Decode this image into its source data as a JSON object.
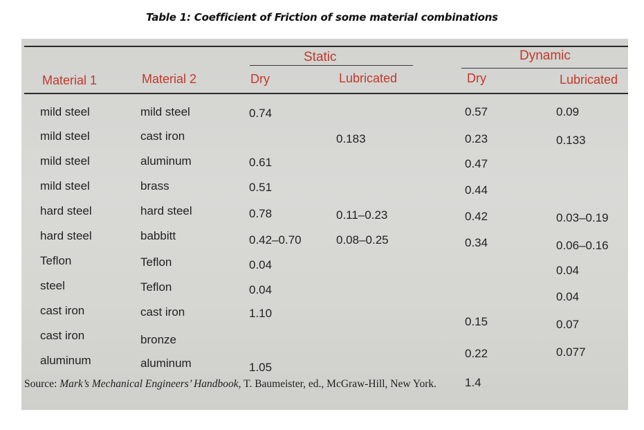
{
  "caption": "Table 1: Coefficient of Friction of some material combinations",
  "groups": {
    "static": "Static",
    "dynamic": "Dynamic"
  },
  "headers": {
    "material1": "Material 1",
    "material2": "Material 2",
    "static_dry": "Dry",
    "static_lubricated": "Lubricated",
    "dynamic_dry": "Dry",
    "dynamic_lubricated": "Lubricated"
  },
  "rows": [
    {
      "m1": "mild steel",
      "m2": "mild steel",
      "sd": "0.74",
      "sl": "",
      "dd": "0.57",
      "dl": "0.09"
    },
    {
      "m1": "mild steel",
      "m2": "cast iron",
      "sd": "",
      "sl": "0.183",
      "dd": "0.23",
      "dl": "0.133"
    },
    {
      "m1": "mild steel",
      "m2": "aluminum",
      "sd": "0.61",
      "sl": "",
      "dd": "0.47",
      "dl": ""
    },
    {
      "m1": "mild steel",
      "m2": "brass",
      "sd": "0.51",
      "sl": "",
      "dd": "0.44",
      "dl": ""
    },
    {
      "m1": "hard steel",
      "m2": "hard steel",
      "sd": "0.78",
      "sl": "0.11–0.23",
      "dd": "0.42",
      "dl": "0.03–0.19"
    },
    {
      "m1": "hard steel",
      "m2": "babbitt",
      "sd": "0.42–0.70",
      "sl": "0.08–0.25",
      "dd": "0.34",
      "dl": "0.06–0.16"
    },
    {
      "m1": "Teflon",
      "m2": "Teflon",
      "sd": "0.04",
      "sl": "",
      "dd": "",
      "dl": "0.04"
    },
    {
      "m1": "steel",
      "m2": "Teflon",
      "sd": "0.04",
      "sl": "",
      "dd": "",
      "dl": "0.04"
    },
    {
      "m1": "cast iron",
      "m2": "cast iron",
      "sd": "1.10",
      "sl": "",
      "dd": "0.15",
      "dl": "0.07"
    },
    {
      "m1": "cast iron",
      "m2": "bronze",
      "sd": "",
      "sl": "",
      "dd": "0.22",
      "dl": "0.077"
    },
    {
      "m1": "aluminum",
      "m2": "aluminum",
      "sd": "1.05",
      "sl": "",
      "dd": "1.4",
      "dl": ""
    }
  ],
  "source": {
    "prefix": "Source:",
    "book": "Mark’s Mechanical Engineers’ Handbook,",
    "rest": "T. Baumeister, ed., McGraw-Hill, New York."
  }
}
